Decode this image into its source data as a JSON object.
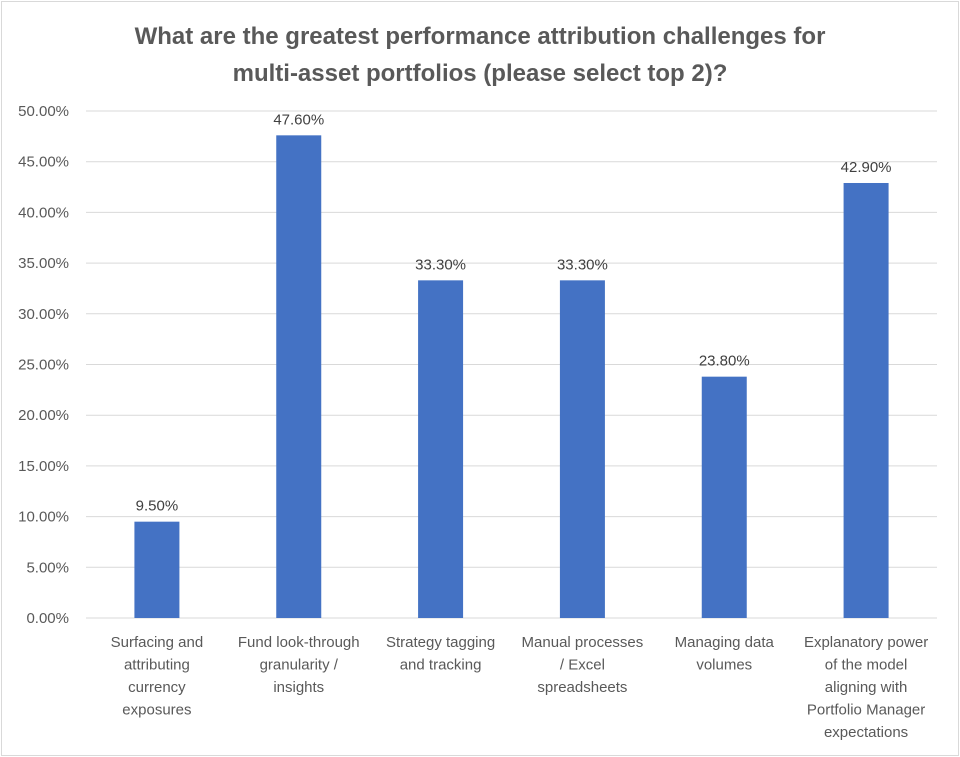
{
  "chart_data": {
    "type": "bar",
    "title": "What are the greatest performance attribution challenges for multi-asset portfolios (please select top 2)?",
    "title_lines": [
      "What are the greatest performance attribution challenges for",
      "multi-asset portfolios (please select top 2)?"
    ],
    "categories": [
      "Surfacing and attributing currency exposures",
      "Fund look-through granularity / insights",
      "Strategy tagging and tracking",
      "Manual processes / Excel spreadsheets",
      "Managing data volumes",
      "Explanatory power of the model aligning with Portfolio Manager expectations"
    ],
    "category_lines": [
      [
        "Surfacing and",
        "attributing",
        "currency",
        "exposures"
      ],
      [
        "Fund look-through",
        "granularity /",
        "insights"
      ],
      [
        "Strategy tagging",
        "and tracking"
      ],
      [
        "Manual processes",
        "/ Excel",
        "spreadsheets"
      ],
      [
        "Managing data",
        "volumes"
      ],
      [
        "Explanatory power",
        "of the model",
        "aligning with",
        "Portfolio Manager",
        "expectations"
      ]
    ],
    "values": [
      9.5,
      47.6,
      33.3,
      33.3,
      23.8,
      42.9
    ],
    "data_labels": [
      "9.50%",
      "47.60%",
      "33.30%",
      "33.30%",
      "23.80%",
      "42.90%"
    ],
    "yticks": [
      "0.00%",
      "5.00%",
      "10.00%",
      "15.00%",
      "20.00%",
      "25.00%",
      "30.00%",
      "35.00%",
      "40.00%",
      "45.00%",
      "50.00%"
    ],
    "xlabel": "",
    "ylabel": "",
    "ylim": [
      0,
      50
    ],
    "grid": true,
    "legend": "none",
    "bar_color": "#4472c4",
    "grid_color": "#d9d9d9"
  }
}
